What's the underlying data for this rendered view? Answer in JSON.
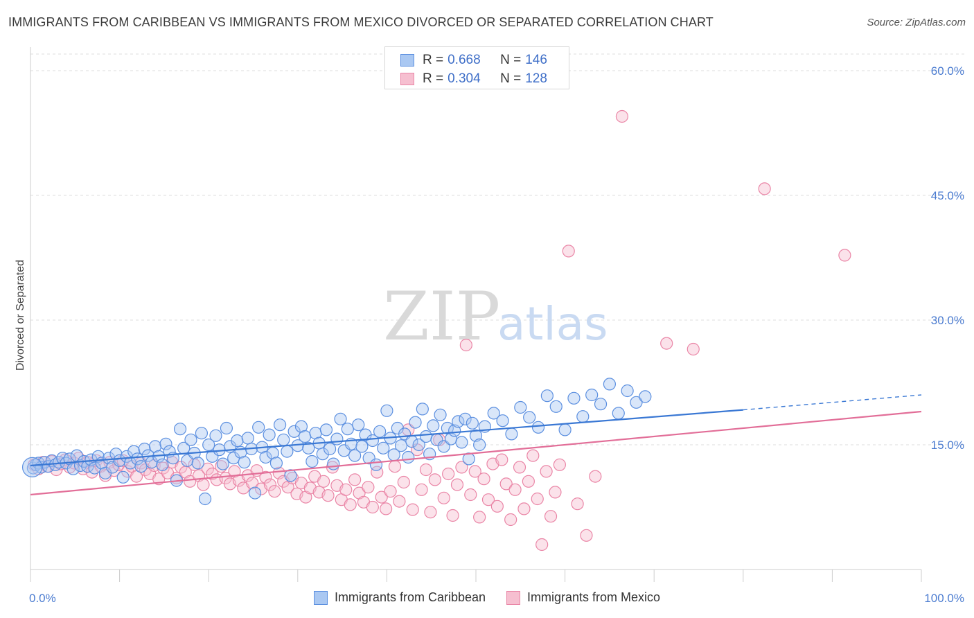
{
  "title": "IMMIGRANTS FROM CARIBBEAN VS IMMIGRANTS FROM MEXICO DIVORCED OR SEPARATED CORRELATION CHART",
  "source": "Source: ZipAtlas.com",
  "colors": {
    "blue": "#5b8fe0",
    "blue_fill": "#aac8f2",
    "blue_line": "#3a78d4",
    "pink": "#ea85a6",
    "pink_fill": "#f6bfd0",
    "pink_line": "#e26e98",
    "tick_text": "#4a7bd0",
    "grid": "#dddddd"
  },
  "legend": {
    "rows": [
      {
        "r_label": "R =",
        "r_value": "0.668",
        "n_label": "N =",
        "n_value": "146"
      },
      {
        "r_label": "R =",
        "r_value": "0.304",
        "n_label": "N =",
        "n_value": "128"
      }
    ]
  },
  "watermark": {
    "zip": "ZIP",
    "atlas": "atlas"
  },
  "chart_data": {
    "type": "scatter",
    "title": "IMMIGRANTS FROM CARIBBEAN VS IMMIGRANTS FROM MEXICO DIVORCED OR SEPARATED CORRELATION CHART",
    "ylabel": "Divorced or Separated",
    "xlim": [
      0,
      100
    ],
    "ylim": [
      0,
      62
    ],
    "x_tick_labels": [
      "0.0%",
      "100.0%"
    ],
    "y_ticks": [
      15,
      30,
      45,
      60
    ],
    "y_tick_labels": [
      "15.0%",
      "30.0%",
      "45.0%",
      "60.0%"
    ],
    "grid": "horizontal dashed",
    "legend_position": "top-center",
    "series": [
      {
        "name": "Immigrants from Caribbean",
        "color": "#5b8fe0",
        "r": 0.668,
        "n": 146,
        "trend": {
          "x0": 0,
          "y0": 12.5,
          "x1": 80,
          "y1": 19.2,
          "dashed_to_x": 100,
          "dashed_to_y": 21.0
        },
        "points": [
          [
            0.3,
            12.2
          ],
          [
            0.6,
            12.6
          ],
          [
            0.9,
            12.8
          ],
          [
            1.2,
            12.3
          ],
          [
            1.6,
            12.9
          ],
          [
            2.0,
            12.4
          ],
          [
            2.4,
            13.1
          ],
          [
            2.8,
            12.6
          ],
          [
            3.2,
            12.9
          ],
          [
            3.6,
            13.4
          ],
          [
            4.0,
            12.8
          ],
          [
            4.4,
            13.3
          ],
          [
            4.8,
            12.1
          ],
          [
            5.2,
            13.7
          ],
          [
            5.6,
            12.5
          ],
          [
            6.0,
            13.0
          ],
          [
            6.4,
            12.4
          ],
          [
            6.8,
            13.2
          ],
          [
            7.2,
            12.2
          ],
          [
            7.6,
            13.6
          ],
          [
            8.0,
            12.8
          ],
          [
            8.4,
            11.6
          ],
          [
            8.8,
            13.4
          ],
          [
            9.2,
            12.3
          ],
          [
            9.6,
            13.9
          ],
          [
            10.0,
            13.1
          ],
          [
            10.4,
            11.1
          ],
          [
            10.8,
            13.6
          ],
          [
            11.2,
            12.8
          ],
          [
            11.6,
            14.2
          ],
          [
            12.0,
            13.3
          ],
          [
            12.4,
            12.4
          ],
          [
            12.8,
            14.5
          ],
          [
            13.2,
            13.7
          ],
          [
            13.6,
            12.9
          ],
          [
            14.0,
            14.8
          ],
          [
            14.4,
            13.6
          ],
          [
            14.8,
            12.6
          ],
          [
            15.2,
            15.1
          ],
          [
            15.6,
            14.2
          ],
          [
            16.0,
            13.4
          ],
          [
            16.4,
            10.7
          ],
          [
            16.8,
            16.9
          ],
          [
            17.2,
            14.6
          ],
          [
            17.6,
            13.1
          ],
          [
            18.0,
            15.6
          ],
          [
            18.4,
            14.0
          ],
          [
            18.8,
            12.8
          ],
          [
            19.2,
            16.4
          ],
          [
            19.6,
            8.5
          ],
          [
            20.0,
            15.0
          ],
          [
            20.4,
            13.6
          ],
          [
            20.8,
            16.1
          ],
          [
            21.2,
            14.4
          ],
          [
            21.6,
            12.7
          ],
          [
            22.0,
            17.0
          ],
          [
            22.4,
            14.8
          ],
          [
            22.8,
            13.4
          ],
          [
            23.2,
            15.5
          ],
          [
            23.6,
            14.1
          ],
          [
            24.0,
            12.9
          ],
          [
            24.4,
            15.8
          ],
          [
            24.8,
            14.5
          ],
          [
            25.2,
            9.2
          ],
          [
            25.6,
            17.1
          ],
          [
            26.0,
            14.7
          ],
          [
            26.4,
            13.5
          ],
          [
            26.8,
            16.2
          ],
          [
            27.2,
            14.0
          ],
          [
            27.6,
            12.8
          ],
          [
            28.0,
            17.4
          ],
          [
            28.4,
            15.6
          ],
          [
            28.8,
            14.2
          ],
          [
            29.2,
            11.3
          ],
          [
            29.6,
            16.6
          ],
          [
            30.0,
            14.9
          ],
          [
            30.4,
            17.2
          ],
          [
            30.8,
            16.0
          ],
          [
            31.2,
            14.6
          ],
          [
            31.6,
            13.0
          ],
          [
            32.0,
            16.4
          ],
          [
            32.4,
            15.2
          ],
          [
            32.8,
            13.9
          ],
          [
            33.2,
            16.8
          ],
          [
            33.6,
            14.5
          ],
          [
            34.0,
            12.7
          ],
          [
            34.4,
            15.7
          ],
          [
            34.8,
            18.1
          ],
          [
            35.2,
            14.3
          ],
          [
            35.6,
            16.9
          ],
          [
            36.0,
            15.1
          ],
          [
            36.4,
            13.7
          ],
          [
            36.8,
            17.4
          ],
          [
            37.2,
            14.8
          ],
          [
            37.6,
            16.2
          ],
          [
            38.0,
            13.4
          ],
          [
            38.4,
            15.5
          ],
          [
            38.8,
            12.6
          ],
          [
            39.2,
            16.6
          ],
          [
            39.6,
            14.6
          ],
          [
            40.0,
            19.1
          ],
          [
            40.4,
            15.8
          ],
          [
            40.8,
            13.8
          ],
          [
            41.2,
            17.0
          ],
          [
            41.6,
            14.9
          ],
          [
            42.0,
            16.3
          ],
          [
            42.4,
            13.5
          ],
          [
            42.8,
            15.4
          ],
          [
            43.2,
            17.7
          ],
          [
            43.6,
            15.0
          ],
          [
            44.0,
            19.3
          ],
          [
            44.4,
            16.0
          ],
          [
            44.8,
            13.9
          ],
          [
            45.2,
            17.3
          ],
          [
            45.6,
            15.6
          ],
          [
            46.0,
            18.6
          ],
          [
            46.4,
            14.8
          ],
          [
            46.8,
            17.0
          ],
          [
            47.2,
            15.7
          ],
          [
            47.6,
            16.7
          ],
          [
            48.0,
            17.8
          ],
          [
            48.4,
            15.3
          ],
          [
            48.8,
            18.1
          ],
          [
            49.2,
            13.3
          ],
          [
            49.6,
            17.6
          ],
          [
            50.0,
            16.1
          ],
          [
            50.4,
            15.0
          ],
          [
            51.0,
            17.2
          ],
          [
            52.0,
            18.8
          ],
          [
            53.0,
            17.9
          ],
          [
            54.0,
            16.3
          ],
          [
            55.0,
            19.5
          ],
          [
            56.0,
            18.3
          ],
          [
            57.0,
            17.1
          ],
          [
            58.0,
            20.9
          ],
          [
            59.0,
            19.6
          ],
          [
            60.0,
            16.8
          ],
          [
            61.0,
            20.6
          ],
          [
            62.0,
            18.4
          ],
          [
            63.0,
            21.0
          ],
          [
            64.0,
            19.9
          ],
          [
            65.0,
            22.3
          ],
          [
            66.0,
            18.8
          ],
          [
            67.0,
            21.5
          ],
          [
            68.0,
            20.1
          ],
          [
            69.0,
            20.8
          ]
        ]
      },
      {
        "name": "Immigrants from Mexico",
        "color": "#ea85a6",
        "r": 0.304,
        "n": 128,
        "trend": {
          "x0": 0,
          "y0": 9.0,
          "x1": 100,
          "y1": 19.0
        },
        "points": [
          [
            0.4,
            12.6
          ],
          [
            0.9,
            12.1
          ],
          [
            1.4,
            12.9
          ],
          [
            1.9,
            12.4
          ],
          [
            2.4,
            13.0
          ],
          [
            2.9,
            12.0
          ],
          [
            3.4,
            12.7
          ],
          [
            3.9,
            13.2
          ],
          [
            4.4,
            12.3
          ],
          [
            4.9,
            12.8
          ],
          [
            5.4,
            13.4
          ],
          [
            5.9,
            12.1
          ],
          [
            6.4,
            12.9
          ],
          [
            6.9,
            11.7
          ],
          [
            7.4,
            13.1
          ],
          [
            7.9,
            12.4
          ],
          [
            8.4,
            11.3
          ],
          [
            8.9,
            12.9
          ],
          [
            9.4,
            11.9
          ],
          [
            9.9,
            12.6
          ],
          [
            10.4,
            13.1
          ],
          [
            10.9,
            11.8
          ],
          [
            11.4,
            12.4
          ],
          [
            11.9,
            11.2
          ],
          [
            12.4,
            12.8
          ],
          [
            12.9,
            12.0
          ],
          [
            13.4,
            11.5
          ],
          [
            13.9,
            12.5
          ],
          [
            14.4,
            10.9
          ],
          [
            14.9,
            12.2
          ],
          [
            15.4,
            11.6
          ],
          [
            15.9,
            12.9
          ],
          [
            16.4,
            11.0
          ],
          [
            16.9,
            12.3
          ],
          [
            17.4,
            11.7
          ],
          [
            17.9,
            10.6
          ],
          [
            18.4,
            12.6
          ],
          [
            18.9,
            11.3
          ],
          [
            19.4,
            10.2
          ],
          [
            19.9,
            12.1
          ],
          [
            20.4,
            11.5
          ],
          [
            20.9,
            10.8
          ],
          [
            21.4,
            12.4
          ],
          [
            21.9,
            11.0
          ],
          [
            22.4,
            10.3
          ],
          [
            22.9,
            11.8
          ],
          [
            23.4,
            10.7
          ],
          [
            23.9,
            9.8
          ],
          [
            24.4,
            11.3
          ],
          [
            24.9,
            10.4
          ],
          [
            25.4,
            11.9
          ],
          [
            25.9,
            9.7
          ],
          [
            26.4,
            11.1
          ],
          [
            26.9,
            10.2
          ],
          [
            27.4,
            9.4
          ],
          [
            27.9,
            11.6
          ],
          [
            28.4,
            10.6
          ],
          [
            28.9,
            9.9
          ],
          [
            29.4,
            11.0
          ],
          [
            29.9,
            9.1
          ],
          [
            30.4,
            10.4
          ],
          [
            30.9,
            8.7
          ],
          [
            31.4,
            9.8
          ],
          [
            31.9,
            11.2
          ],
          [
            32.4,
            9.3
          ],
          [
            32.9,
            10.6
          ],
          [
            33.4,
            8.9
          ],
          [
            33.9,
            12.3
          ],
          [
            34.4,
            10.1
          ],
          [
            34.9,
            8.4
          ],
          [
            35.4,
            9.6
          ],
          [
            35.9,
            7.8
          ],
          [
            36.4,
            10.8
          ],
          [
            36.9,
            9.2
          ],
          [
            37.4,
            8.1
          ],
          [
            37.9,
            9.9
          ],
          [
            38.4,
            7.5
          ],
          [
            38.9,
            11.7
          ],
          [
            39.4,
            8.7
          ],
          [
            39.9,
            7.3
          ],
          [
            40.4,
            9.4
          ],
          [
            40.9,
            12.4
          ],
          [
            41.4,
            8.2
          ],
          [
            41.9,
            10.5
          ],
          [
            42.4,
            16.8
          ],
          [
            42.9,
            7.2
          ],
          [
            43.4,
            14.4
          ],
          [
            43.9,
            9.6
          ],
          [
            44.4,
            12.0
          ],
          [
            44.9,
            6.9
          ],
          [
            45.4,
            10.8
          ],
          [
            45.9,
            15.6
          ],
          [
            46.4,
            8.6
          ],
          [
            46.9,
            11.5
          ],
          [
            47.4,
            6.5
          ],
          [
            47.9,
            10.2
          ],
          [
            48.4,
            12.3
          ],
          [
            48.9,
            27.0
          ],
          [
            49.4,
            9.0
          ],
          [
            49.9,
            11.8
          ],
          [
            50.4,
            6.3
          ],
          [
            50.9,
            10.9
          ],
          [
            51.4,
            8.4
          ],
          [
            51.9,
            12.7
          ],
          [
            52.4,
            7.6
          ],
          [
            52.9,
            13.2
          ],
          [
            53.4,
            10.3
          ],
          [
            53.9,
            6.0
          ],
          [
            54.4,
            9.6
          ],
          [
            54.9,
            12.3
          ],
          [
            55.4,
            7.3
          ],
          [
            55.9,
            10.6
          ],
          [
            56.4,
            13.7
          ],
          [
            56.9,
            8.5
          ],
          [
            57.4,
            3.0
          ],
          [
            57.9,
            11.8
          ],
          [
            58.4,
            6.4
          ],
          [
            58.9,
            9.3
          ],
          [
            59.4,
            12.6
          ],
          [
            60.4,
            38.3
          ],
          [
            61.4,
            7.9
          ],
          [
            62.4,
            4.1
          ],
          [
            63.4,
            11.2
          ],
          [
            66.4,
            54.5
          ],
          [
            71.4,
            27.2
          ],
          [
            74.4,
            26.5
          ],
          [
            82.4,
            45.8
          ],
          [
            91.4,
            37.8
          ]
        ]
      }
    ]
  },
  "bottom_legend": {
    "items": [
      {
        "label": "Immigrants from Caribbean"
      },
      {
        "label": "Immigrants from Mexico"
      }
    ]
  }
}
